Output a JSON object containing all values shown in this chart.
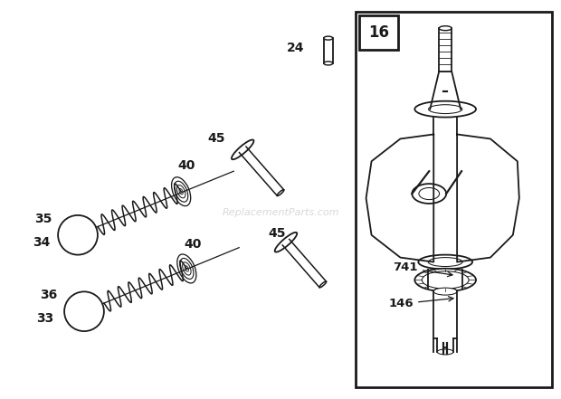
{
  "bg_color": "#ffffff",
  "line_color": "#1a1a1a",
  "fig_width": 6.2,
  "fig_height": 4.41,
  "dpi": 100,
  "watermark_text": "ReplacementParts.com",
  "watermark_color": "#c8c8c8"
}
